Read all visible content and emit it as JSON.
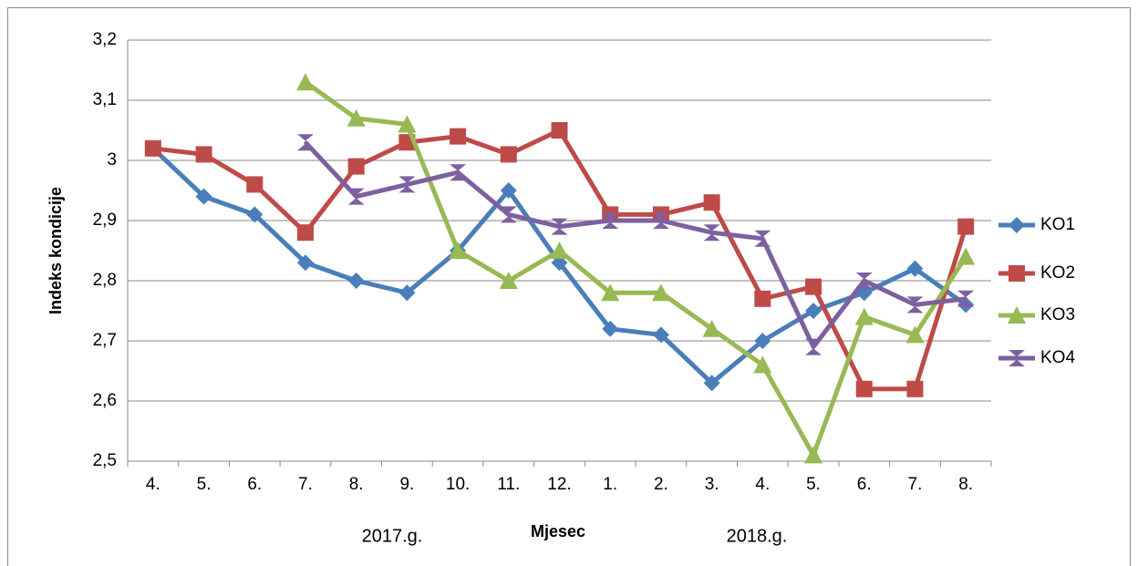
{
  "chart_data": {
    "type": "line",
    "y_label": "Indeks kondicije",
    "x_label": "Mjesec",
    "annotations": [
      "2017.g.",
      "2018.g."
    ],
    "categories": [
      "4.",
      "5.",
      "6.",
      "7.",
      "8.",
      "9.",
      "10.",
      "11.",
      "12.",
      "1.",
      "2.",
      "3.",
      "4.",
      "5.",
      "6.",
      "7.",
      "8."
    ],
    "ylim": [
      2.5,
      3.2
    ],
    "yticks": [
      {
        "value": 2.5,
        "label": "2,5"
      },
      {
        "value": 2.6,
        "label": "2,6"
      },
      {
        "value": 2.7,
        "label": "2,7"
      },
      {
        "value": 2.8,
        "label": "2,8"
      },
      {
        "value": 2.9,
        "label": "2,9"
      },
      3,
      {
        "value": 3.1,
        "label": "3,1"
      },
      {
        "value": 3.2,
        "label": "3,2"
      }
    ],
    "grid": true,
    "legend": "right",
    "series": [
      {
        "name": "KO1",
        "color": "#4a7ebb",
        "marker": "diamond",
        "values": [
          3.02,
          2.94,
          2.91,
          2.83,
          2.8,
          2.78,
          2.85,
          2.95,
          2.83,
          2.72,
          2.71,
          2.63,
          2.7,
          2.75,
          2.78,
          2.82,
          2.76
        ]
      },
      {
        "name": "KO2",
        "color": "#be4b48",
        "marker": "square",
        "values": [
          3.02,
          3.01,
          2.96,
          2.88,
          2.99,
          3.03,
          3.04,
          3.01,
          3.05,
          2.91,
          2.91,
          2.93,
          2.77,
          2.79,
          2.62,
          2.62,
          2.89
        ]
      },
      {
        "name": "KO3",
        "color": "#98b954",
        "marker": "triangle",
        "values": [
          null,
          null,
          null,
          3.13,
          3.07,
          3.06,
          2.85,
          2.8,
          2.85,
          2.78,
          2.78,
          2.72,
          2.66,
          2.51,
          2.74,
          2.71,
          2.84
        ]
      },
      {
        "name": "KO4",
        "color": "#7d60a0",
        "marker": "hourglass",
        "values": [
          null,
          null,
          null,
          3.03,
          2.94,
          2.96,
          2.98,
          2.91,
          2.89,
          2.9,
          2.9,
          2.88,
          2.87,
          2.69,
          2.8,
          2.76,
          2.77
        ]
      }
    ]
  }
}
